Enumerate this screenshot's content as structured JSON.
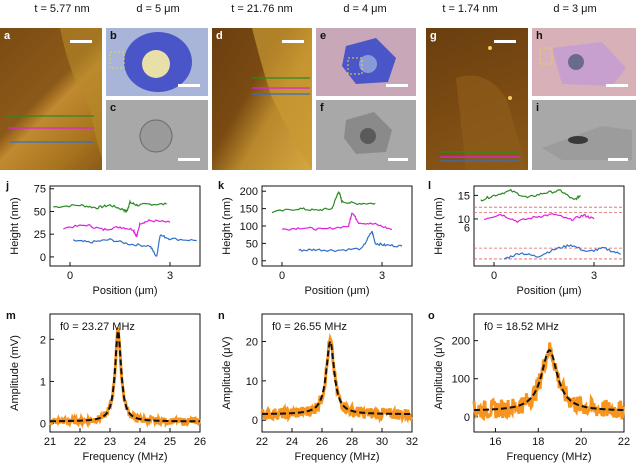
{
  "headers": [
    {
      "text": "t = 5.77 nm"
    },
    {
      "text": "d = 5 μm"
    },
    {
      "text": "t = 21.76 nm"
    },
    {
      "text": "d = 4 μm"
    },
    {
      "text": "t = 1.74 nm"
    },
    {
      "text": "d = 3 μm"
    }
  ],
  "image_panels": [
    "a",
    "b",
    "c",
    "d",
    "e",
    "f",
    "g",
    "h",
    "i"
  ],
  "colors": {
    "green": "#2a8a22",
    "magenta": "#e020e0",
    "blue": "#3070c8",
    "orange": "#f7941d",
    "fit": "#111111",
    "ref_line": "#e06060"
  },
  "plot_letters": [
    "j",
    "k",
    "l",
    "m",
    "n",
    "o"
  ],
  "chart_data": [
    {
      "type": "line",
      "panel": "j",
      "xlabel": "Position (μm)",
      "ylabel": "Height (nm)",
      "xlim": [
        -0.6,
        3.9
      ],
      "ylim": [
        -10,
        78
      ],
      "xticks": [
        0,
        3
      ],
      "yticks": [
        0,
        25,
        50,
        75
      ],
      "series": [
        {
          "color": "green",
          "x": [
            -0.5,
            0.3,
            0.8,
            1.2,
            1.6,
            1.7,
            1.8,
            2.0,
            2.4,
            2.9
          ],
          "y": [
            55,
            57,
            54,
            57,
            52,
            50,
            60,
            57,
            58,
            58
          ]
        },
        {
          "color": "magenta",
          "x": [
            -0.2,
            0.5,
            1.0,
            1.5,
            1.9,
            2.0,
            2.1,
            2.4,
            3.0
          ],
          "y": [
            32,
            35,
            30,
            33,
            30,
            22,
            37,
            40,
            38
          ]
        },
        {
          "color": "blue",
          "x": [
            0.1,
            0.6,
            1.2,
            1.8,
            2.4,
            2.6,
            2.7,
            3.0,
            3.8
          ],
          "y": [
            18,
            16,
            19,
            14,
            12,
            0,
            24,
            20,
            18
          ]
        }
      ]
    },
    {
      "type": "line",
      "panel": "k",
      "xlabel": "Position (μm)",
      "ylabel": "Height (nm)",
      "xlim": [
        -0.6,
        3.9
      ],
      "ylim": [
        -15,
        215
      ],
      "xticks": [
        0,
        3
      ],
      "yticks": [
        0,
        50,
        100,
        150,
        200
      ],
      "series": [
        {
          "color": "green",
          "x": [
            -0.3,
            0.5,
            1.0,
            1.5,
            1.7,
            1.8,
            2.2,
            2.8
          ],
          "y": [
            140,
            150,
            145,
            150,
            200,
            170,
            165,
            165
          ]
        },
        {
          "color": "magenta",
          "x": [
            0.0,
            0.6,
            1.2,
            2.0,
            2.1,
            2.3,
            2.8,
            3.3
          ],
          "y": [
            90,
            95,
            90,
            100,
            140,
            110,
            105,
            90
          ]
        },
        {
          "color": "blue",
          "x": [
            0.5,
            1.0,
            1.6,
            2.4,
            2.7,
            2.8,
            3.1,
            3.6
          ],
          "y": [
            30,
            32,
            30,
            35,
            85,
            50,
            45,
            42
          ]
        }
      ]
    },
    {
      "type": "line",
      "panel": "l",
      "xlabel": "Position (μm)",
      "ylabel": "Height (nm)",
      "xlim": [
        -0.6,
        3.9
      ],
      "ylim": [
        0,
        17
      ],
      "xticks": [
        0,
        3
      ],
      "yticks": [
        10,
        15
      ],
      "break_tick": "6",
      "series": [
        {
          "color": "green",
          "x": [
            -0.4,
            0.0,
            0.5,
            1.0,
            1.5,
            2.0,
            2.4,
            2.6
          ],
          "y": [
            14,
            15,
            16,
            14.5,
            15.5,
            16,
            14,
            15
          ]
        },
        {
          "color": "magenta",
          "x": [
            -0.3,
            0.2,
            0.7,
            1.3,
            1.8,
            2.3,
            2.7,
            3.0
          ],
          "y": [
            10,
            11,
            9.5,
            10.5,
            11,
            9.8,
            10.8,
            10
          ]
        },
        {
          "color": "blue",
          "x": [
            0.3,
            0.8,
            1.3,
            1.8,
            2.3,
            2.8,
            3.3,
            3.8
          ],
          "y": [
            1.5,
            2.8,
            2.0,
            3.5,
            4.5,
            3.0,
            3.8,
            2.5
          ]
        }
      ]
    },
    {
      "type": "line",
      "panel": "m",
      "xlabel": "Frequency (MHz)",
      "ylabel": "Amplitude (mV)",
      "xlim": [
        21,
        26
      ],
      "ylim": [
        -0.2,
        2.6
      ],
      "xticks": [
        21,
        22,
        23,
        24,
        25,
        26
      ],
      "yticks": [
        0,
        1,
        2
      ],
      "annotation": "f0 = 23.27 MHz",
      "f0": 23.27,
      "peak": 2.15,
      "gamma": 0.12,
      "base": 0.05,
      "noise": 0.08
    },
    {
      "type": "line",
      "panel": "n",
      "xlabel": "Frequency (MHz)",
      "ylabel": "Amplitude (μV)",
      "xlim": [
        22,
        32
      ],
      "ylim": [
        -3,
        27
      ],
      "xticks": [
        22,
        24,
        26,
        28,
        30,
        32
      ],
      "yticks": [
        0,
        10,
        20
      ],
      "annotation": "f0 = 26.55 MHz",
      "f0": 26.55,
      "peak": 18.5,
      "gamma": 0.32,
      "base": 1.5,
      "noise": 1.5
    },
    {
      "type": "line",
      "panel": "o",
      "xlabel": "Frequency (MHz)",
      "ylabel": "Amplitude (μV)",
      "xlim": [
        15,
        22
      ],
      "ylim": [
        -40,
        270
      ],
      "xticks": [
        16,
        18,
        20,
        22
      ],
      "yticks": [
        0,
        100,
        200
      ],
      "annotation": "f0 = 18.52 MHz",
      "f0": 18.52,
      "peak": 160,
      "gamma": 0.45,
      "base": 15,
      "noise": 25
    }
  ]
}
